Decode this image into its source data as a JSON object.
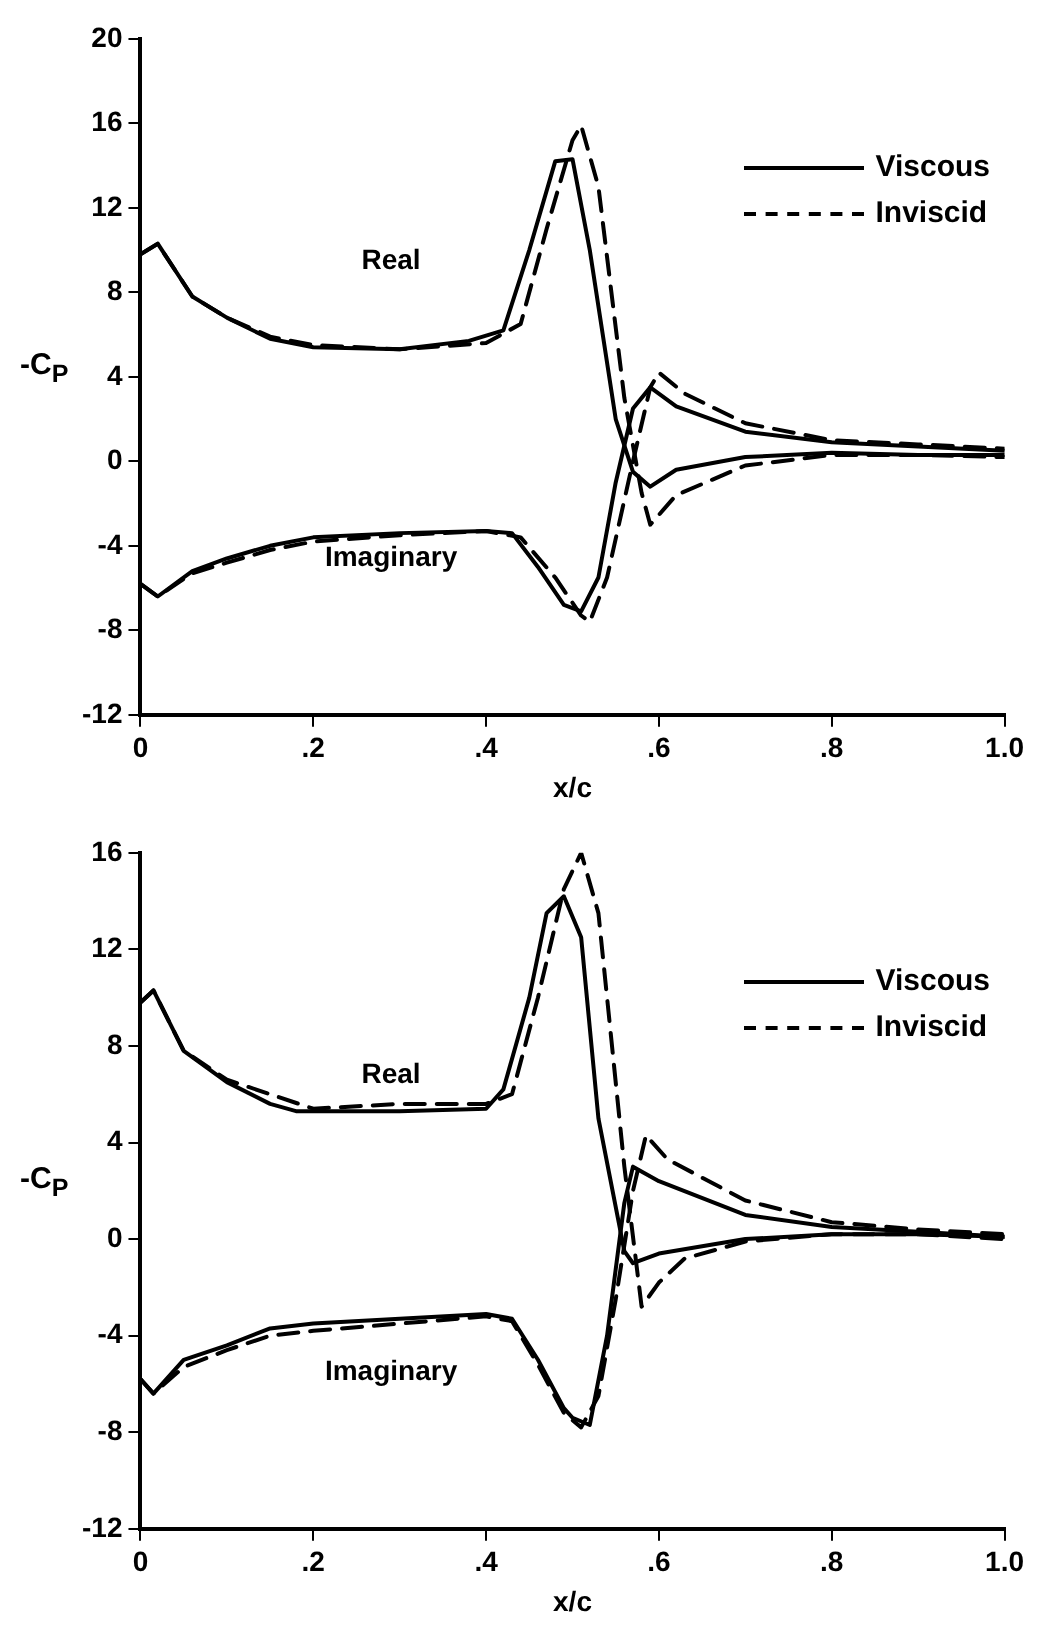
{
  "chart_data": [
    {
      "type": "line",
      "xlabel": "x/c",
      "ylabel": "-C$_{P}$",
      "annotations": [
        "Real",
        "Imaginary"
      ],
      "xlim": [
        0,
        1
      ],
      "xticks": [
        0,
        {
          "value": 0.2,
          "label": ".2"
        },
        {
          "value": 0.4,
          "label": ".4"
        },
        {
          "value": 0.6,
          "label": ".6"
        },
        {
          "value": 0.8,
          "label": ".8"
        },
        {
          "value": 1,
          "label": "1.0"
        }
      ],
      "ylim": [
        -12,
        20
      ],
      "yticks": [
        -12,
        -8,
        -4,
        0,
        4,
        8,
        12,
        16,
        20
      ],
      "grid": false,
      "legend": "top right",
      "marker": "none",
      "series": [
        {
          "name": "Viscous",
          "color": "#000000",
          "line_style": "solid",
          "x": [
            0,
            0.02,
            0.06,
            0.1,
            0.15,
            0.2,
            0.3,
            0.38,
            0.42,
            0.45,
            0.48,
            0.5,
            0.52,
            0.55,
            0.57,
            0.59,
            0.62,
            0.7,
            0.8,
            0.9,
            1.0
          ],
          "values": [
            9.8,
            10.3,
            7.8,
            6.8,
            5.8,
            5.4,
            5.3,
            5.7,
            6.2,
            10,
            14.2,
            14.3,
            10,
            2,
            -0.5,
            -1.2,
            -0.4,
            0.2,
            0.4,
            0.3,
            0.3
          ]
        },
        {
          "color": "#000000",
          "line_style": "solid",
          "x": [
            0,
            0.02,
            0.06,
            0.1,
            0.15,
            0.2,
            0.3,
            0.4,
            0.43,
            0.46,
            0.49,
            0.51,
            0.53,
            0.55,
            0.57,
            0.59,
            0.62,
            0.7,
            0.8,
            0.9,
            1.0
          ],
          "values": [
            -5.8,
            -6.4,
            -5.2,
            -4.6,
            -4,
            -3.6,
            -3.4,
            -3.3,
            -3.4,
            -5,
            -6.8,
            -7.1,
            -5.5,
            -1,
            2.5,
            3.5,
            2.6,
            1.4,
            0.9,
            0.7,
            0.5
          ]
        },
        {
          "name": "Inviscid",
          "color": "#000000",
          "line_style": "dashed",
          "x": [
            0,
            0.02,
            0.06,
            0.1,
            0.15,
            0.2,
            0.3,
            0.4,
            0.44,
            0.47,
            0.5,
            0.51,
            0.53,
            0.56,
            0.58,
            0.59,
            0.62,
            0.7,
            0.8,
            0.9,
            1.0
          ],
          "values": [
            9.8,
            10.3,
            7.8,
            6.8,
            5.9,
            5.5,
            5.3,
            5.6,
            6.5,
            11,
            15.2,
            15.9,
            13,
            3,
            -1.5,
            -3,
            -1.6,
            -0.2,
            0.3,
            0.3,
            0.2
          ]
        },
        {
          "color": "#000000",
          "line_style": "dashed",
          "x": [
            0,
            0.02,
            0.06,
            0.1,
            0.15,
            0.2,
            0.3,
            0.4,
            0.44,
            0.48,
            0.51,
            0.52,
            0.54,
            0.57,
            0.59,
            0.6,
            0.63,
            0.7,
            0.8,
            0.9,
            1.0
          ],
          "values": [
            -5.8,
            -6.4,
            -5.3,
            -4.8,
            -4.2,
            -3.8,
            -3.5,
            -3.3,
            -3.6,
            -5.5,
            -7.3,
            -7.6,
            -5.5,
            0,
            3.5,
            4.2,
            3.2,
            1.8,
            1.0,
            0.8,
            0.6
          ]
        }
      ]
    },
    {
      "type": "line",
      "xlabel": "x/c",
      "ylabel": "-C$_{P}$",
      "annotations": [
        "Real",
        "Imaginary"
      ],
      "xlim": [
        0,
        1
      ],
      "xticks": [
        0,
        {
          "value": 0.2,
          "label": ".2"
        },
        {
          "value": 0.4,
          "label": ".4"
        },
        {
          "value": 0.6,
          "label": ".6"
        },
        {
          "value": 0.8,
          "label": ".8"
        },
        {
          "value": 1,
          "label": "1.0"
        }
      ],
      "ylim": [
        -12,
        16
      ],
      "yticks": [
        -12,
        -8,
        -4,
        0,
        4,
        8,
        12,
        16
      ],
      "grid": false,
      "legend": "top right",
      "marker": "none",
      "series": [
        {
          "name": "Viscous",
          "color": "#000000",
          "line_style": "solid",
          "x": [
            0,
            0.015,
            0.05,
            0.1,
            0.15,
            0.18,
            0.3,
            0.4,
            0.42,
            0.45,
            0.47,
            0.49,
            0.51,
            0.53,
            0.56,
            0.57,
            0.6,
            0.7,
            0.8,
            0.9,
            1.0
          ],
          "values": [
            9.8,
            10.3,
            7.8,
            6.5,
            5.6,
            5.3,
            5.3,
            5.4,
            6.2,
            10,
            13.5,
            14.2,
            12.5,
            5,
            -0.5,
            -1,
            -0.6,
            0,
            0.2,
            0.2,
            0.1
          ]
        },
        {
          "color": "#000000",
          "line_style": "solid",
          "x": [
            0,
            0.015,
            0.05,
            0.1,
            0.15,
            0.2,
            0.3,
            0.4,
            0.43,
            0.46,
            0.49,
            0.5,
            0.52,
            0.54,
            0.56,
            0.57,
            0.6,
            0.7,
            0.8,
            0.9,
            1.0
          ],
          "values": [
            -5.8,
            -6.4,
            -5,
            -4.4,
            -3.7,
            -3.5,
            -3.3,
            -3.1,
            -3.3,
            -5,
            -7,
            -7.4,
            -7.7,
            -4,
            1.5,
            3,
            2.4,
            1,
            0.5,
            0.3,
            0.1
          ]
        },
        {
          "name": "Inviscid",
          "color": "#000000",
          "line_style": "dashed",
          "x": [
            0,
            0.015,
            0.05,
            0.1,
            0.15,
            0.2,
            0.3,
            0.4,
            0.43,
            0.46,
            0.49,
            0.51,
            0.53,
            0.56,
            0.58,
            0.6,
            0.63,
            0.7,
            0.8,
            0.9,
            1.0
          ],
          "values": [
            9.8,
            10.3,
            7.8,
            6.6,
            6,
            5.4,
            5.6,
            5.6,
            6,
            10,
            14.5,
            16,
            13.5,
            3,
            -2.8,
            -1.8,
            -0.8,
            -0.1,
            0.2,
            0.2,
            0
          ]
        },
        {
          "color": "#000000",
          "line_style": "dashed",
          "x": [
            0,
            0.015,
            0.05,
            0.1,
            0.15,
            0.2,
            0.3,
            0.4,
            0.43,
            0.46,
            0.49,
            0.51,
            0.53,
            0.55,
            0.57,
            0.585,
            0.61,
            0.7,
            0.8,
            0.9,
            1.0
          ],
          "values": [
            -5.8,
            -6.4,
            -5.3,
            -4.6,
            -4,
            -3.8,
            -3.5,
            -3.2,
            -3.4,
            -5.2,
            -7.2,
            -7.8,
            -6.5,
            -2.5,
            2,
            4.3,
            3.3,
            1.6,
            0.7,
            0.4,
            0.2
          ]
        }
      ]
    }
  ]
}
